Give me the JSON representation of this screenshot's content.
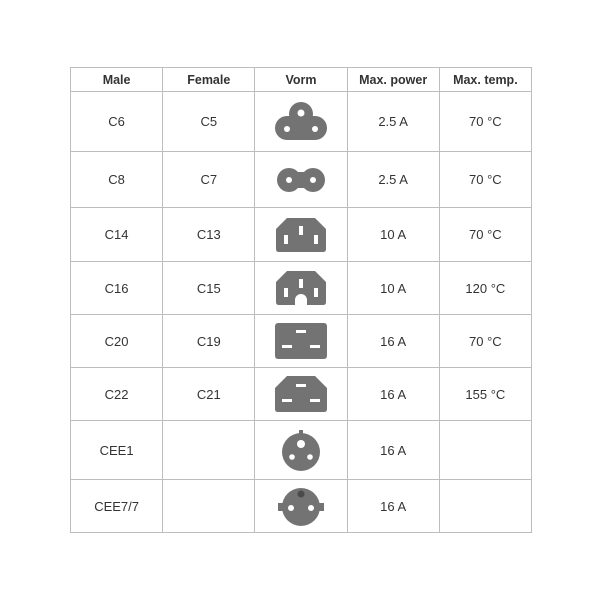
{
  "colors": {
    "icon": "#737373",
    "border": "#bdbdbd"
  },
  "headers": [
    "Male",
    "Female",
    "Vorm",
    "Max. power",
    "Max. temp."
  ],
  "rows": [
    {
      "male": "C6",
      "female": "C5",
      "icon": "c5-cloverleaf-icon",
      "power": "2.5 A",
      "temp": "70 °C"
    },
    {
      "male": "C8",
      "female": "C7",
      "icon": "c7-figure-eight-icon",
      "power": "2.5 A",
      "temp": "70 °C"
    },
    {
      "male": "C14",
      "female": "C13",
      "icon": "c13-connector-icon",
      "power": "10 A",
      "temp": "70 °C"
    },
    {
      "male": "C16",
      "female": "C15",
      "icon": "c15-connector-icon",
      "power": "10 A",
      "temp": "120 °C"
    },
    {
      "male": "C20",
      "female": "C19",
      "icon": "c19-connector-icon",
      "power": "16 A",
      "temp": "70 °C"
    },
    {
      "male": "C22",
      "female": "C21",
      "icon": "c21-connector-icon",
      "power": "16 A",
      "temp": "155 °C"
    },
    {
      "male": "CEE1",
      "female": "",
      "icon": "cee1-plug-icon",
      "power": "16 A",
      "temp": ""
    },
    {
      "male": "CEE7/7",
      "female": "",
      "icon": "cee7-schuko-plug-icon",
      "power": "16 A",
      "temp": ""
    }
  ]
}
